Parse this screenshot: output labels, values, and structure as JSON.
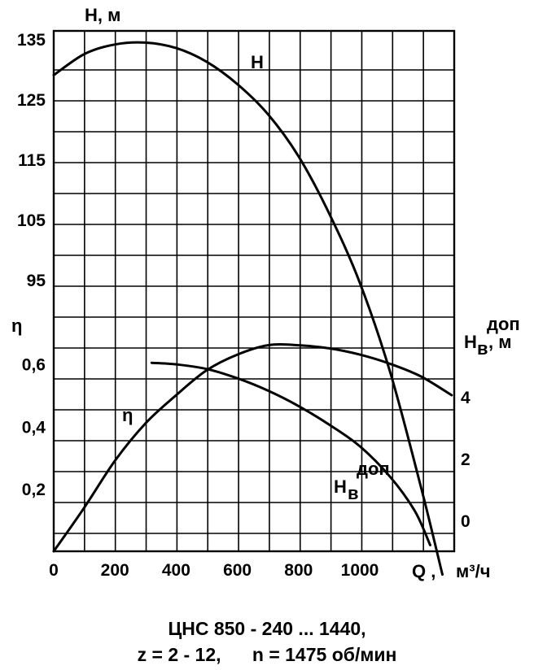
{
  "chart_data": {
    "type": "line",
    "xlabel": "Q",
    "xunit": "м³/ч",
    "xlim": [
      0,
      1300
    ],
    "x_ticks": [
      "0",
      "200",
      "400",
      "600",
      "800",
      "1000"
    ],
    "axes": {
      "H": {
        "label": "H, м",
        "ylim": [
          85,
          135
        ],
        "ticks": [
          "135",
          "125",
          "115",
          "105",
          "95"
        ]
      },
      "eta": {
        "label": "η",
        "ylim": [
          0,
          0.7
        ],
        "ticks": [
          "0,6",
          "0,4",
          "0,2"
        ]
      },
      "Hv": {
        "label_main": "H",
        "label_sub": "в",
        "label_sup": "доп",
        "label_unit": ", м",
        "ylim": [
          -1,
          7
        ],
        "ticks": [
          "4",
          "2",
          "0"
        ]
      }
    },
    "series": [
      {
        "name": "H",
        "axis": "H",
        "x": [
          0,
          100,
          200,
          300,
          400,
          500,
          600,
          700,
          800,
          900,
          1000,
          1100,
          1200,
          1270
        ],
        "y": [
          129,
          132.5,
          134.1,
          134.4,
          133.5,
          131.2,
          127.5,
          122.5,
          115.5,
          106,
          94.5,
          79.5,
          60.5,
          46
        ]
      },
      {
        "name": "η",
        "axis": "eta",
        "x": [
          0,
          100,
          200,
          300,
          400,
          500,
          600,
          700,
          800,
          900,
          1000,
          1100,
          1200,
          1300
        ],
        "y": [
          0,
          0.14,
          0.29,
          0.41,
          0.5,
          0.58,
          0.63,
          0.66,
          0.66,
          0.65,
          0.63,
          0.6,
          0.56,
          0.5
        ]
      },
      {
        "name": "Hв доп",
        "label_main": "H",
        "label_sub": "в",
        "label_sup": "доп",
        "axis": "Hv",
        "x": [
          320,
          400,
          500,
          600,
          700,
          800,
          900,
          1000,
          1100,
          1180,
          1230
        ],
        "y": [
          5.1,
          5.05,
          4.9,
          4.6,
          4.2,
          3.7,
          3.1,
          2.4,
          1.4,
          0.3,
          -0.8
        ]
      }
    ],
    "grid": true
  },
  "caption": {
    "line1": "ЦНС 850 - 240 ... 1440,",
    "line2_a": "z = 2 - 12,",
    "line2_b": "n = 1475 об/мин"
  }
}
